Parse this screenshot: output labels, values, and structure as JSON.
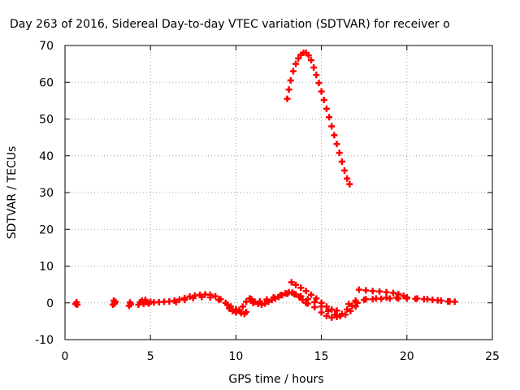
{
  "chart_data": {
    "type": "scatter",
    "title": "Day 263 of 2016, Sidereal Day-to-day VTEC variation (SDTVAR) for receiver o",
    "xlabel": "GPS time / hours",
    "ylabel": "SDTVAR / TECUs",
    "xlim": [
      0,
      25
    ],
    "ylim": [
      -10,
      70
    ],
    "xticks": [
      "0",
      "5",
      "10",
      "15",
      "20",
      "25"
    ],
    "yticks": [
      "-10",
      "0",
      "10",
      "20",
      "30",
      "40",
      "50",
      "60",
      "70"
    ],
    "grid": true,
    "marker": "plus",
    "color": "#ff0000",
    "series": [
      {
        "points": [
          [
            0.62,
            -0.3
          ],
          [
            0.68,
            0.2
          ],
          [
            0.72,
            -0.5
          ],
          [
            2.8,
            -0.5
          ],
          [
            2.85,
            0.6
          ],
          [
            2.9,
            -0.2
          ],
          [
            2.95,
            0.3
          ],
          [
            3.75,
            -0.8
          ],
          [
            3.8,
            0.1
          ],
          [
            3.85,
            -0.4
          ],
          [
            4.3,
            -0.5
          ],
          [
            4.4,
            0.2
          ],
          [
            4.5,
            0.6
          ],
          [
            4.6,
            -0.3
          ],
          [
            4.7,
            0.8
          ],
          [
            4.8,
            0.2
          ],
          [
            4.9,
            -0.2
          ],
          [
            5.0,
            0.3
          ],
          [
            5.2,
            0.1
          ],
          [
            5.5,
            0.2
          ],
          [
            5.8,
            0.3
          ],
          [
            6.1,
            0.4
          ],
          [
            6.4,
            0.6
          ],
          [
            6.7,
            0.9
          ],
          [
            7.0,
            1.3
          ],
          [
            7.3,
            1.7
          ],
          [
            7.6,
            2.0
          ],
          [
            7.9,
            2.2
          ],
          [
            8.2,
            2.3
          ],
          [
            8.5,
            2.2
          ],
          [
            8.8,
            1.8
          ],
          [
            9.1,
            1.0
          ],
          [
            9.4,
            0.0
          ],
          [
            9.7,
            -1.0
          ],
          [
            10.0,
            -1.8
          ],
          [
            10.2,
            -2.0
          ],
          [
            6.5,
            0.2
          ],
          [
            7.0,
            0.8
          ],
          [
            7.5,
            1.3
          ],
          [
            8.0,
            1.6
          ],
          [
            8.5,
            1.5
          ],
          [
            9.0,
            0.8
          ],
          [
            9.5,
            -0.5
          ],
          [
            10.0,
            -1.8
          ],
          [
            10.3,
            -2.8
          ],
          [
            10.5,
            -3.0
          ],
          [
            10.6,
            -2.5
          ],
          [
            9.6,
            -1.5
          ],
          [
            9.8,
            -2.2
          ],
          [
            10.0,
            -2.6
          ],
          [
            10.2,
            -2.2
          ],
          [
            10.4,
            -1.0
          ],
          [
            10.6,
            0.3
          ],
          [
            10.8,
            1.2
          ],
          [
            10.9,
            1.0
          ],
          [
            11.1,
            0.3
          ],
          [
            11.3,
            -0.3
          ],
          [
            11.5,
            -0.5
          ],
          [
            11.7,
            -0.2
          ],
          [
            11.9,
            0.3
          ],
          [
            12.1,
            0.8
          ],
          [
            12.3,
            1.2
          ],
          [
            12.5,
            1.6
          ],
          [
            12.7,
            2.1
          ],
          [
            12.9,
            2.6
          ],
          [
            13.1,
            2.9
          ],
          [
            13.3,
            2.8
          ],
          [
            13.5,
            2.3
          ],
          [
            13.7,
            1.6
          ],
          [
            13.9,
            0.8
          ],
          [
            14.1,
            0.0
          ],
          [
            11.0,
            0.0
          ],
          [
            11.4,
            0.4
          ],
          [
            11.8,
            0.9
          ],
          [
            12.2,
            1.5
          ],
          [
            12.6,
            2.1
          ],
          [
            13.0,
            2.5
          ],
          [
            13.4,
            2.4
          ],
          [
            13.8,
            1.8
          ],
          [
            14.2,
            1.0
          ],
          [
            14.6,
            0.2
          ],
          [
            15.0,
            -1.0
          ],
          [
            15.4,
            -2.2
          ],
          [
            15.8,
            -3.2
          ],
          [
            16.1,
            -3.6
          ],
          [
            16.4,
            -3.2
          ],
          [
            16.7,
            -2.2
          ],
          [
            17.0,
            -1.0
          ],
          [
            14.2,
            -0.2
          ],
          [
            14.6,
            -1.2
          ],
          [
            15.0,
            -2.6
          ],
          [
            15.3,
            -3.6
          ],
          [
            15.6,
            -4.0
          ],
          [
            15.9,
            -3.8
          ],
          [
            16.2,
            -3.0
          ],
          [
            16.5,
            -1.8
          ],
          [
            16.8,
            -0.8
          ],
          [
            17.1,
            0.0
          ],
          [
            13.25,
            5.6
          ],
          [
            13.5,
            4.9
          ],
          [
            13.8,
            4.1
          ],
          [
            14.1,
            3.2
          ],
          [
            14.4,
            2.2
          ],
          [
            14.7,
            1.2
          ],
          [
            15.0,
            0.0
          ],
          [
            15.3,
            -1.0
          ],
          [
            15.6,
            -1.8
          ],
          [
            15.9,
            -2.1
          ],
          [
            16.6,
            -0.3
          ],
          [
            17.0,
            0.3
          ],
          [
            17.5,
            0.8
          ],
          [
            18.0,
            1.0
          ],
          [
            18.5,
            1.1
          ],
          [
            19.0,
            1.2
          ],
          [
            19.5,
            1.2
          ],
          [
            20.0,
            1.2
          ],
          [
            20.5,
            1.1
          ],
          [
            21.0,
            1.0
          ],
          [
            21.5,
            0.8
          ],
          [
            22.0,
            0.6
          ],
          [
            22.5,
            0.4
          ],
          [
            22.8,
            0.3
          ],
          [
            17.0,
            0.6
          ],
          [
            17.6,
            1.0
          ],
          [
            18.2,
            1.2
          ],
          [
            18.8,
            1.4
          ],
          [
            19.4,
            1.4
          ],
          [
            20.0,
            1.3
          ],
          [
            20.6,
            1.2
          ],
          [
            21.2,
            1.0
          ],
          [
            21.8,
            0.7
          ],
          [
            22.4,
            0.4
          ],
          [
            17.2,
            3.6
          ],
          [
            17.6,
            3.4
          ],
          [
            18.0,
            3.2
          ],
          [
            18.4,
            3.1
          ],
          [
            18.8,
            2.9
          ],
          [
            19.2,
            2.7
          ],
          [
            19.5,
            2.4
          ],
          [
            19.8,
            1.9
          ],
          [
            20.0,
            1.5
          ],
          [
            13.0,
            55.5
          ],
          [
            13.1,
            58.0
          ],
          [
            13.2,
            60.5
          ],
          [
            13.35,
            63.0
          ],
          [
            13.5,
            65.0
          ],
          [
            13.65,
            66.5
          ],
          [
            13.8,
            67.5
          ],
          [
            13.95,
            68.0
          ],
          [
            14.1,
            68.0
          ],
          [
            14.25,
            67.3
          ],
          [
            14.4,
            66.0
          ],
          [
            14.55,
            64.0
          ],
          [
            14.7,
            62.0
          ],
          [
            14.85,
            59.8
          ],
          [
            15.0,
            57.5
          ],
          [
            15.15,
            55.2
          ],
          [
            15.3,
            52.8
          ],
          [
            15.45,
            50.5
          ],
          [
            15.6,
            48.0
          ],
          [
            15.75,
            45.6
          ],
          [
            15.9,
            43.2
          ],
          [
            16.05,
            40.8
          ],
          [
            16.2,
            38.4
          ],
          [
            16.35,
            36.0
          ],
          [
            16.5,
            33.8
          ],
          [
            16.65,
            32.3
          ]
        ]
      }
    ]
  }
}
